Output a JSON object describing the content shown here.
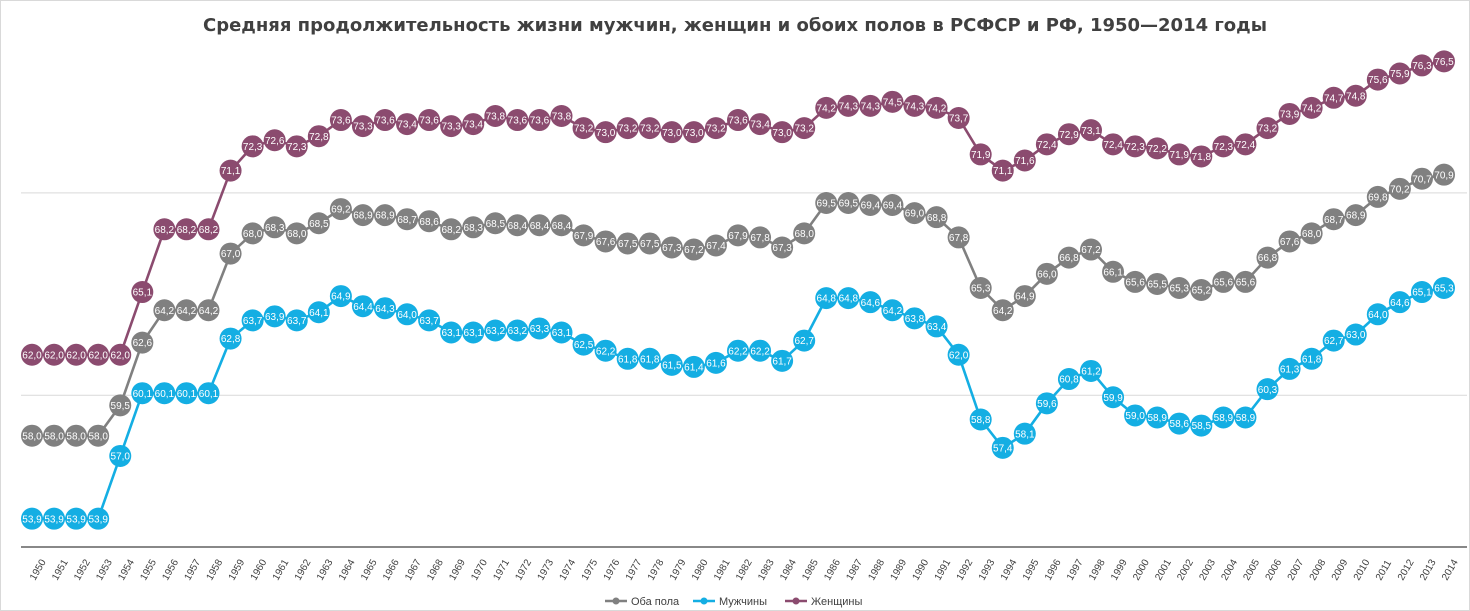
{
  "chart_data": {
    "type": "line",
    "title": "Средняя продолжительность жизни мужчин, женщин и обоих полов в РСФСР и РФ, 1950—2014 годы",
    "xlabel": "",
    "ylabel": "",
    "ylim": [
      52.5,
      78
    ],
    "grid": true,
    "legend_position": "bottom",
    "categories": [
      "1950",
      "1951",
      "1952",
      "1953",
      "1954",
      "1955",
      "1956",
      "1957",
      "1958",
      "1959",
      "1960",
      "1961",
      "1962",
      "1963",
      "1964",
      "1965",
      "1966",
      "1967",
      "1968",
      "1969",
      "1970",
      "1971",
      "1972",
      "1973",
      "1974",
      "1975",
      "1976",
      "1977",
      "1978",
      "1979",
      "1980",
      "1981",
      "1982",
      "1983",
      "1984",
      "1985",
      "1986",
      "1987",
      "1988",
      "1989",
      "1990",
      "1991",
      "1992",
      "1993",
      "1994",
      "1995",
      "1996",
      "1997",
      "1998",
      "1999",
      "2000",
      "2001",
      "2002",
      "2003",
      "2004",
      "2005",
      "2006",
      "2007",
      "2008",
      "2009",
      "2010",
      "2011",
      "2012",
      "2013",
      "2014"
    ],
    "series": [
      {
        "name": "Оба пола",
        "color": "#808080",
        "labels": [
          "58,0",
          "58,0",
          "58,0",
          "58,0",
          "59,5",
          "62,6",
          "64,2",
          "64,2",
          "64,2",
          "67,0",
          "68,0",
          "68,3",
          "68,0",
          "68,5",
          "69,2",
          "68,9",
          "68,9",
          "68,7",
          "68,6",
          "68,2",
          "68,3",
          "68,5",
          "68,4",
          "68,4",
          "68,4",
          "67,9",
          "67,6",
          "67,5",
          "67,5",
          "67,3",
          "67,2",
          "67,4",
          "67,9",
          "67,8",
          "67,3",
          "68,0",
          "69,5",
          "69,5",
          "69,4",
          "69,4",
          "69,0",
          "68,8",
          "67,8",
          "65,3",
          "64,2",
          "64,9",
          "66,0",
          "66,8",
          "67,2",
          "66,1",
          "65,6",
          "65,5",
          "65,3",
          "65,2",
          "65,6",
          "65,6",
          "66,8",
          "67,6",
          "68,0",
          "68,7",
          "68,9",
          "69,8",
          "70,2",
          "70,7",
          "70,9"
        ],
        "values": [
          58.0,
          58.0,
          58.0,
          58.0,
          59.5,
          62.6,
          64.2,
          64.2,
          64.2,
          67.0,
          68.0,
          68.3,
          68.0,
          68.5,
          69.2,
          68.9,
          68.9,
          68.7,
          68.6,
          68.2,
          68.3,
          68.5,
          68.4,
          68.4,
          68.4,
          67.9,
          67.6,
          67.5,
          67.5,
          67.3,
          67.2,
          67.4,
          67.9,
          67.8,
          67.3,
          68.0,
          69.5,
          69.5,
          69.4,
          69.4,
          69.0,
          68.8,
          67.8,
          65.3,
          64.2,
          64.9,
          66.0,
          66.8,
          67.2,
          66.1,
          65.6,
          65.5,
          65.3,
          65.2,
          65.6,
          65.6,
          66.8,
          67.6,
          68.0,
          68.7,
          68.9,
          69.8,
          70.2,
          70.7,
          70.9
        ]
      },
      {
        "name": "Мужчины",
        "color": "#14aee3",
        "labels": [
          "53,9",
          "53,9",
          "53,9",
          "53,9",
          "57,0",
          "60,1",
          "60,1",
          "60,1",
          "60,1",
          "62,8",
          "63,7",
          "63,9",
          "63,7",
          "64,1",
          "64,9",
          "64,4",
          "64,3",
          "64,0",
          "63,7",
          "63,1",
          "63,1",
          "63,2",
          "63,2",
          "63,3",
          "63,1",
          "62,5",
          "62,2",
          "61,8",
          "61,8",
          "61,5",
          "61,4",
          "61,6",
          "62,2",
          "62,2",
          "61,7",
          "62,7",
          "64,8",
          "64,8",
          "64,6",
          "64,2",
          "63,8",
          "63,4",
          "62,0",
          "58,8",
          "57,4",
          "58,1",
          "59,6",
          "60,8",
          "61,2",
          "59,9",
          "59,0",
          "58,9",
          "58,6",
          "58,5",
          "58,9",
          "58,9",
          "60,3",
          "61,3",
          "61,8",
          "62,7",
          "63,0",
          "64,0",
          "64,6",
          "65,1",
          "65,3"
        ],
        "values": [
          53.9,
          53.9,
          53.9,
          53.9,
          57.0,
          60.1,
          60.1,
          60.1,
          60.1,
          62.8,
          63.7,
          63.9,
          63.7,
          64.1,
          64.9,
          64.4,
          64.3,
          64.0,
          63.7,
          63.1,
          63.1,
          63.2,
          63.2,
          63.3,
          63.1,
          62.5,
          62.2,
          61.8,
          61.8,
          61.5,
          61.4,
          61.6,
          62.2,
          62.2,
          61.7,
          62.7,
          64.8,
          64.8,
          64.6,
          64.2,
          63.8,
          63.4,
          62.0,
          58.8,
          57.4,
          58.1,
          59.6,
          60.8,
          61.2,
          59.9,
          59.0,
          58.9,
          58.6,
          58.5,
          58.9,
          58.9,
          60.3,
          61.3,
          61.8,
          62.7,
          63.0,
          64.0,
          64.6,
          65.1,
          65.3
        ]
      },
      {
        "name": "Женщины",
        "color": "#8b4b6f",
        "labels": [
          "62,0",
          "62,0",
          "62,0",
          "62,0",
          "62,0",
          "65,1",
          "68,2",
          "68,2",
          "68,2",
          "71,1",
          "72,3",
          "72,6",
          "72,3",
          "72,8",
          "73,6",
          "73,3",
          "73,6",
          "73,4",
          "73,6",
          "73,3",
          "73,4",
          "73,8",
          "73,6",
          "73,6",
          "73,8",
          "73,2",
          "73,0",
          "73,2",
          "73,2",
          "73,0",
          "73,0",
          "73,2",
          "73,6",
          "73,4",
          "73,0",
          "73,2",
          "74,2",
          "74,3",
          "74,3",
          "74,5",
          "74,3",
          "74,2",
          "73,7",
          "71,9",
          "71,1",
          "71,6",
          "72,4",
          "72,9",
          "73,1",
          "72,4",
          "72,3",
          "72,2",
          "71,9",
          "71,8",
          "72,3",
          "72,4",
          "73,2",
          "73,9",
          "74,2",
          "74,7",
          "74,8",
          "75,6",
          "75,9",
          "76,3",
          "76,5"
        ],
        "values": [
          62.0,
          62.0,
          62.0,
          62.0,
          62.0,
          65.1,
          68.2,
          68.2,
          68.2,
          71.1,
          72.3,
          72.6,
          72.3,
          72.8,
          73.6,
          73.3,
          73.6,
          73.4,
          73.6,
          73.3,
          73.4,
          73.8,
          73.6,
          73.6,
          73.8,
          73.2,
          73.0,
          73.2,
          73.2,
          73.0,
          73.0,
          73.2,
          73.6,
          73.4,
          73.0,
          73.2,
          74.2,
          74.3,
          74.3,
          74.5,
          74.3,
          74.2,
          73.7,
          71.9,
          71.1,
          71.6,
          72.4,
          72.9,
          73.1,
          72.4,
          72.3,
          72.2,
          71.9,
          71.8,
          72.3,
          72.4,
          73.2,
          73.9,
          74.2,
          74.7,
          74.8,
          75.6,
          75.9,
          76.3,
          76.5
        ]
      }
    ]
  }
}
